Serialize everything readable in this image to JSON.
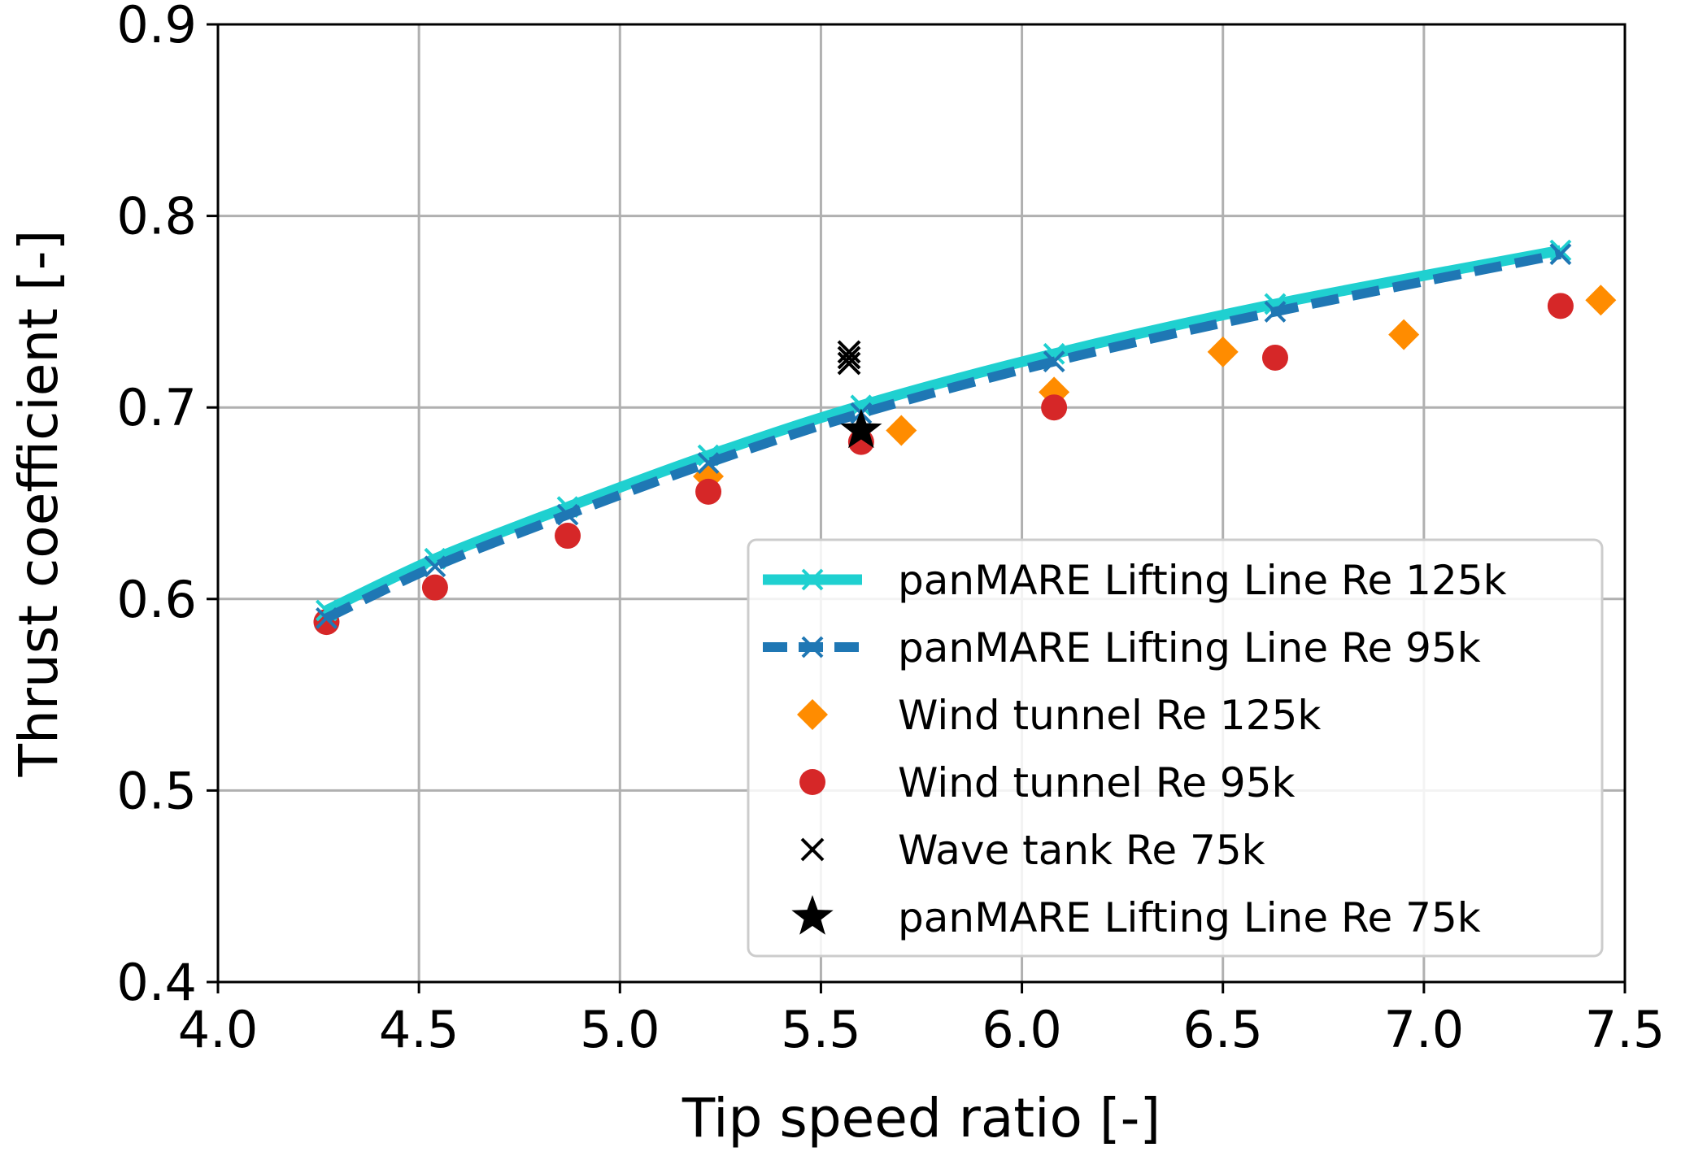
{
  "chart_data": {
    "type": "scatter",
    "title": "",
    "xlabel": "Tip speed ratio [-]",
    "ylabel": "Thrust coefficient [-]",
    "xlim": [
      4.0,
      7.5
    ],
    "ylim": [
      0.4,
      0.9
    ],
    "xticks": [
      "4.0",
      "4.5",
      "5.0",
      "5.5",
      "6.0",
      "6.5",
      "7.0",
      "7.5"
    ],
    "yticks": [
      "0.4",
      "0.5",
      "0.6",
      "0.7",
      "0.8",
      "0.9"
    ],
    "grid": true,
    "legend_position": "lower-right",
    "series": [
      {
        "name": "panMARE Lifting Line Re 125k",
        "style": "solid-line-x-markers",
        "color": "#1fd0d0",
        "x": [
          4.27,
          4.54,
          4.87,
          5.22,
          5.6,
          6.08,
          6.63,
          7.34
        ],
        "y": [
          0.594,
          0.621,
          0.648,
          0.675,
          0.701,
          0.728,
          0.754,
          0.782
        ]
      },
      {
        "name": "panMARE Lifting Line Re 95k",
        "style": "dashed-line-x-markers",
        "color": "#1f77b4",
        "x": [
          4.27,
          4.54,
          4.87,
          5.22,
          5.6,
          6.08,
          6.63,
          7.34
        ],
        "y": [
          0.59,
          0.617,
          0.644,
          0.671,
          0.697,
          0.724,
          0.75,
          0.78
        ]
      },
      {
        "name": "Wind tunnel Re 125k",
        "style": "diamond",
        "color": "#ff8c00",
        "x": [
          5.22,
          5.7,
          6.08,
          6.5,
          6.95,
          7.44
        ],
        "y": [
          0.664,
          0.688,
          0.708,
          0.729,
          0.738,
          0.756
        ]
      },
      {
        "name": "Wind tunnel Re 95k",
        "style": "circle",
        "color": "#d62728",
        "x": [
          4.27,
          4.54,
          4.87,
          5.22,
          5.6,
          6.08,
          6.63,
          7.34
        ],
        "y": [
          0.588,
          0.606,
          0.633,
          0.656,
          0.682,
          0.7,
          0.726,
          0.753
        ]
      },
      {
        "name": "Wave tank Re 75k",
        "style": "x",
        "color": "#000000",
        "x": [
          5.57,
          5.57,
          5.57
        ],
        "y": [
          0.729,
          0.726,
          0.723
        ]
      },
      {
        "name": "panMARE Lifting Line Re 75k",
        "style": "star",
        "color": "#000000",
        "x": [
          5.6
        ],
        "y": [
          0.688
        ]
      }
    ]
  }
}
